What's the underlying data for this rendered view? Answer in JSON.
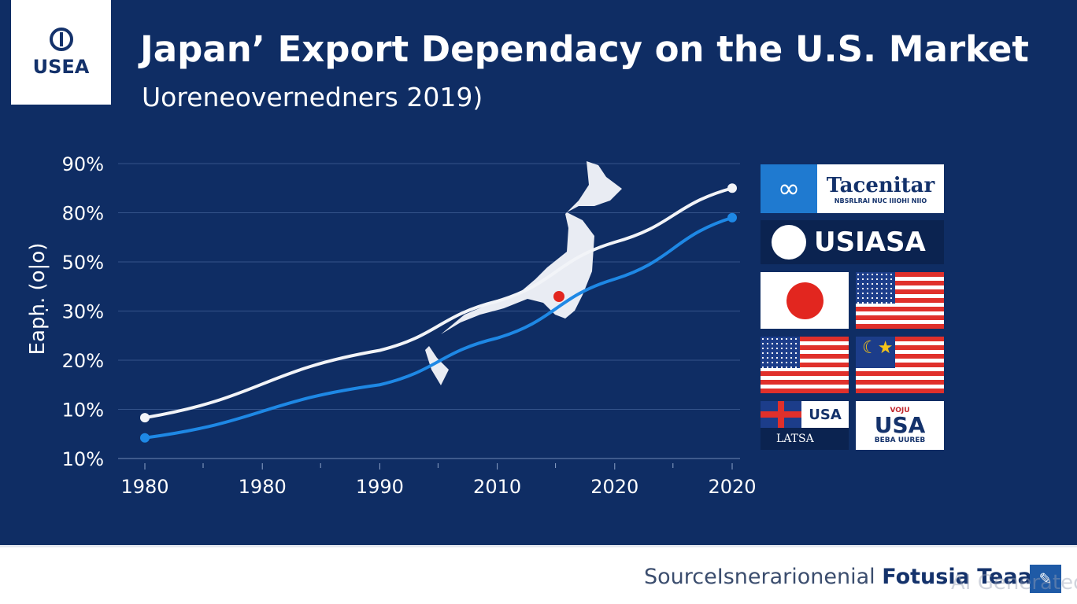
{
  "logo": {
    "text": "USEA"
  },
  "header": {
    "title": "Japan’ Export Dependacy on the U.S. Market",
    "subtitle": "Uoreneovernedners 2019)"
  },
  "chart_data": {
    "type": "line",
    "title": "Japan’ Export Dependacy on the U.S. Market",
    "subtitle": "Uoreneovernedners 2019)",
    "ylabel": "Eapḥ. (o|o)",
    "xlabel": "",
    "x_ticks": [
      "1980",
      "1980",
      "1990",
      "2010",
      "2020",
      "2020"
    ],
    "y_ticks": [
      "10%",
      "10%",
      "20%",
      "30%",
      "50%",
      "80%",
      "90%"
    ],
    "scale_note": "values expressed in tick-index units (axis ticks are non-linear)",
    "xlim": [
      0,
      5
    ],
    "ylim": [
      0,
      6
    ],
    "grid": true,
    "series": [
      {
        "name": "white-series",
        "color": "#f2f4f8",
        "x": [
          0,
          2,
          3,
          4,
          5
        ],
        "y": [
          0.83,
          2.2,
          3.2,
          4.4,
          5.5
        ]
      },
      {
        "name": "blue-series",
        "color": "#1e88e5",
        "x": [
          0,
          2,
          3,
          4,
          5
        ],
        "y": [
          0.42,
          1.5,
          2.45,
          3.65,
          4.9
        ]
      }
    ]
  },
  "sidebar": {
    "card1": {
      "title": "Tacenitar",
      "sub": "NBSRLRAI NUC IIIOHI NIIO"
    },
    "card2": {
      "title": "USIASA"
    },
    "card7": {
      "usa": "USA",
      "label": "LATSA"
    },
    "card8": {
      "top": "VOJU",
      "main": "USA",
      "bottom": "BEBA UUREB"
    },
    "flags": [
      "japan-flag",
      "us-flag",
      "us-flag",
      "malaysia-style-flag"
    ]
  },
  "footer": {
    "source_prefix": "SourceIsnerarionenial",
    "source_bold": "Fotusia Teaa",
    "watermark": "AI Generated"
  },
  "colors": {
    "background": "#0f2d64",
    "accent": "#1e88e5",
    "red": "#e2261f"
  }
}
